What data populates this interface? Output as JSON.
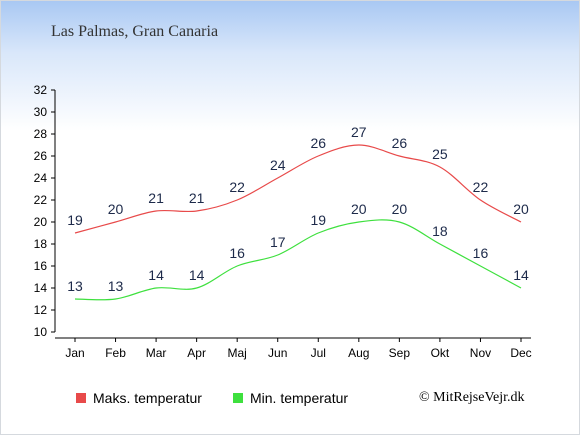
{
  "title": "Las Palmas, Gran Canaria",
  "copyright": "© MitRejseVejr.dk",
  "legend": {
    "max_label": "Maks. temperatur",
    "min_label": "Min. temperatur"
  },
  "colors": {
    "max": "#e84a4a",
    "min": "#3ee03e",
    "label": "#1d2a4a"
  },
  "chart_data": {
    "type": "line",
    "categories": [
      "Jan",
      "Feb",
      "Mar",
      "Apr",
      "Maj",
      "Jun",
      "Jul",
      "Aug",
      "Sep",
      "Okt",
      "Nov",
      "Dec"
    ],
    "series": [
      {
        "name": "Maks. temperatur",
        "values": [
          19,
          20,
          21,
          21,
          22,
          24,
          26,
          27,
          26,
          25,
          22,
          20
        ]
      },
      {
        "name": "Min. temperatur",
        "values": [
          13,
          13,
          14,
          14,
          16,
          17,
          19,
          20,
          20,
          18,
          16,
          14
        ]
      }
    ],
    "yticks": [
      10,
      12,
      14,
      16,
      18,
      20,
      22,
      24,
      26,
      28,
      30,
      32
    ],
    "ylim": [
      10,
      32
    ],
    "grid": false,
    "legend_position": "bottom-left"
  }
}
